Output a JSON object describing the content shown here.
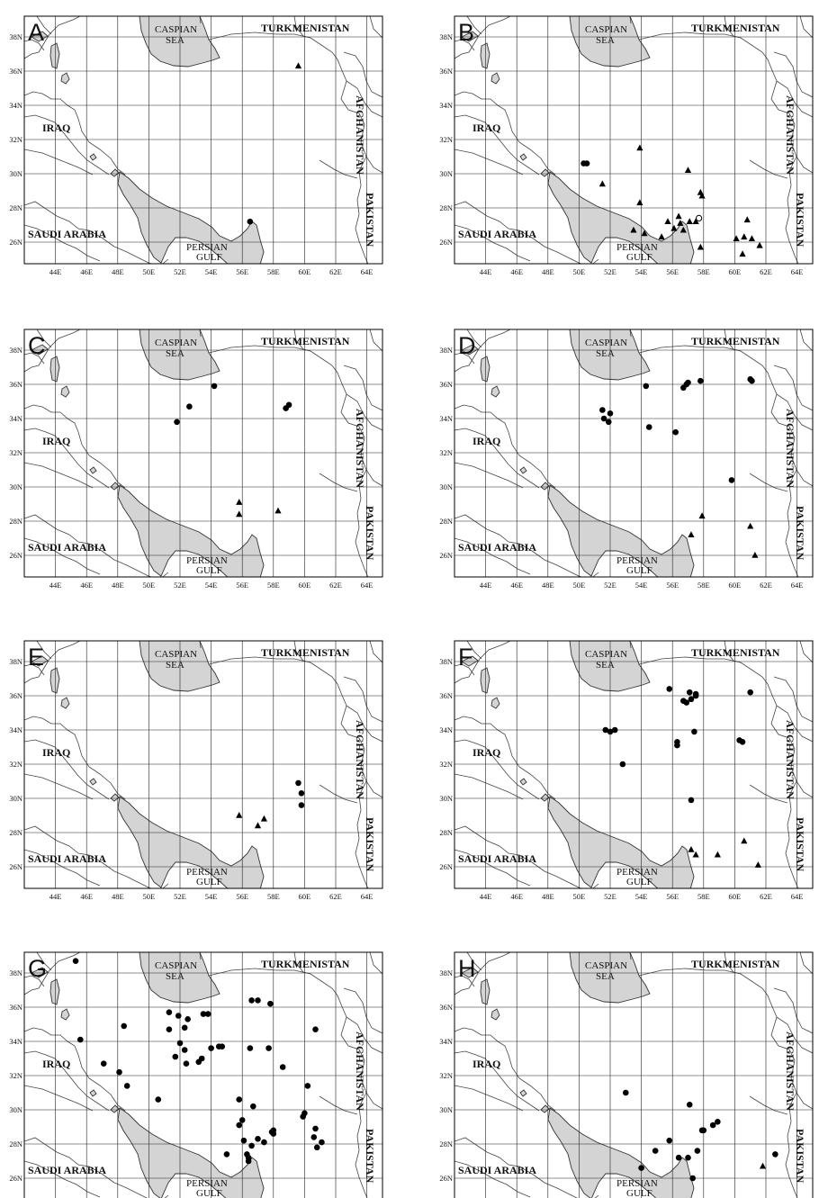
{
  "map": {
    "lon_range": [
      42,
      65
    ],
    "lat_range": [
      25,
      39.5
    ],
    "lon_ticks": [
      "44E",
      "46E",
      "48E",
      "50E",
      "52E",
      "54E",
      "56E",
      "58E",
      "60E",
      "62E",
      "64E"
    ],
    "lat_ticks": [
      "26N",
      "28N",
      "30N",
      "32N",
      "34N",
      "36N",
      "38N"
    ],
    "labels": {
      "turkmenistan": "TURKMENISTAN",
      "iraq": "IRAQ",
      "afghanistan": "AFGHANISTAN",
      "saudi_arabia": "SAUDI ARABIA",
      "pakistan": "PAKISTAN",
      "caspian_1": "CASPIAN",
      "caspian_2": "SEA",
      "gulf_1": "PERSIAN",
      "gulf_2": "GULF"
    },
    "colors": {
      "water": "#d4d4d4",
      "marker": "#000000"
    }
  },
  "panels": [
    {
      "letter": "A",
      "circles": [
        [
          56.5,
          27.2
        ]
      ],
      "triangles": [
        [
          59.6,
          36.3
        ]
      ],
      "open_circles": []
    },
    {
      "letter": "B",
      "circles": [
        [
          50.3,
          30.6
        ],
        [
          50.5,
          30.6
        ]
      ],
      "triangles": [
        [
          51.5,
          29.4
        ],
        [
          53.9,
          31.5
        ],
        [
          53.9,
          28.3
        ],
        [
          53.5,
          26.7
        ],
        [
          54.2,
          26.5
        ],
        [
          55.3,
          26.3
        ],
        [
          55.7,
          27.2
        ],
        [
          56.1,
          26.8
        ],
        [
          56.4,
          27.5
        ],
        [
          56.5,
          27.1
        ],
        [
          56.7,
          26.7
        ],
        [
          57.0,
          30.2
        ],
        [
          57.1,
          27.2
        ],
        [
          57.5,
          27.2
        ],
        [
          57.8,
          28.9
        ],
        [
          57.9,
          28.7
        ],
        [
          57.8,
          25.7
        ],
        [
          60.1,
          26.2
        ],
        [
          60.5,
          25.3
        ],
        [
          60.6,
          26.3
        ],
        [
          60.8,
          27.3
        ],
        [
          61.1,
          26.2
        ],
        [
          61.6,
          25.8
        ]
      ],
      "open_circles": [
        [
          57.7,
          27.4
        ]
      ]
    },
    {
      "letter": "C",
      "circles": [
        [
          51.8,
          33.8
        ],
        [
          52.6,
          34.7
        ],
        [
          54.2,
          35.9
        ],
        [
          58.8,
          34.6
        ],
        [
          59.0,
          34.8
        ]
      ],
      "triangles": [
        [
          55.8,
          29.1
        ],
        [
          55.8,
          28.4
        ],
        [
          58.3,
          28.6
        ]
      ],
      "open_circles": []
    },
    {
      "letter": "D",
      "circles": [
        [
          51.5,
          34.5
        ],
        [
          51.6,
          34.0
        ],
        [
          51.9,
          33.8
        ],
        [
          52.0,
          34.3
        ],
        [
          54.3,
          35.9
        ],
        [
          54.5,
          33.5
        ],
        [
          56.2,
          33.2
        ],
        [
          56.7,
          35.8
        ],
        [
          56.9,
          36.0
        ],
        [
          57.0,
          36.1
        ],
        [
          57.8,
          36.2
        ],
        [
          59.8,
          30.4
        ],
        [
          61.0,
          36.3
        ],
        [
          61.1,
          36.2
        ]
      ],
      "triangles": [
        [
          57.2,
          27.2
        ],
        [
          57.9,
          28.3
        ],
        [
          61.0,
          27.7
        ],
        [
          61.3,
          26.0
        ]
      ],
      "open_circles": []
    },
    {
      "letter": "E",
      "circles": [
        [
          59.6,
          30.9
        ],
        [
          59.8,
          30.3
        ],
        [
          59.8,
          29.6
        ]
      ],
      "triangles": [
        [
          55.8,
          29.0
        ],
        [
          57.0,
          28.4
        ],
        [
          57.4,
          28.8
        ]
      ],
      "open_circles": []
    },
    {
      "letter": "F",
      "circles": [
        [
          51.7,
          34.0
        ],
        [
          52.0,
          33.9
        ],
        [
          52.3,
          34.0
        ],
        [
          52.8,
          32.0
        ],
        [
          55.8,
          36.4
        ],
        [
          56.3,
          33.3
        ],
        [
          56.3,
          33.1
        ],
        [
          56.7,
          35.7
        ],
        [
          56.9,
          35.6
        ],
        [
          57.1,
          36.2
        ],
        [
          57.2,
          35.8
        ],
        [
          57.5,
          36.0
        ],
        [
          57.5,
          36.1
        ],
        [
          57.4,
          33.9
        ],
        [
          57.2,
          29.9
        ],
        [
          60.3,
          33.4
        ],
        [
          60.5,
          33.3
        ],
        [
          61.0,
          36.2
        ]
      ],
      "triangles": [
        [
          57.2,
          27.0
        ],
        [
          57.5,
          26.7
        ],
        [
          58.9,
          26.7
        ],
        [
          60.6,
          27.5
        ],
        [
          61.5,
          26.1
        ]
      ],
      "open_circles": []
    },
    {
      "letter": "G",
      "circles": [
        [
          45.3,
          38.7
        ],
        [
          45.6,
          34.1
        ],
        [
          47.1,
          32.7
        ],
        [
          48.1,
          32.2
        ],
        [
          48.4,
          34.9
        ],
        [
          48.6,
          31.4
        ],
        [
          50.6,
          30.6
        ],
        [
          51.3,
          35.7
        ],
        [
          51.3,
          34.7
        ],
        [
          51.7,
          33.1
        ],
        [
          51.9,
          35.5
        ],
        [
          52.0,
          33.9
        ],
        [
          52.3,
          33.5
        ],
        [
          52.3,
          34.8
        ],
        [
          52.4,
          32.7
        ],
        [
          52.5,
          35.3
        ],
        [
          53.2,
          32.8
        ],
        [
          53.4,
          33.0
        ],
        [
          53.5,
          35.6
        ],
        [
          53.8,
          35.6
        ],
        [
          54.0,
          33.6
        ],
        [
          54.5,
          33.7
        ],
        [
          54.7,
          33.7
        ],
        [
          55.0,
          27.4
        ],
        [
          55.8,
          30.6
        ],
        [
          55.8,
          29.1
        ],
        [
          56.0,
          29.4
        ],
        [
          56.1,
          28.2
        ],
        [
          56.3,
          27.4
        ],
        [
          56.4,
          27.2
        ],
        [
          56.4,
          27.0
        ],
        [
          56.6,
          27.9
        ],
        [
          56.7,
          30.2
        ],
        [
          56.5,
          33.6
        ],
        [
          56.6,
          36.4
        ],
        [
          57.0,
          36.4
        ],
        [
          57.0,
          28.3
        ],
        [
          57.4,
          28.1
        ],
        [
          57.7,
          33.6
        ],
        [
          57.8,
          36.2
        ],
        [
          57.9,
          28.7
        ],
        [
          58.0,
          28.8
        ],
        [
          58.0,
          28.6
        ],
        [
          58.6,
          32.5
        ],
        [
          59.9,
          29.6
        ],
        [
          60.0,
          29.8
        ],
        [
          60.2,
          31.4
        ],
        [
          60.6,
          28.4
        ],
        [
          60.7,
          34.7
        ],
        [
          60.7,
          28.9
        ],
        [
          60.8,
          27.8
        ],
        [
          61.1,
          28.1
        ]
      ],
      "triangles": [],
      "open_circles": []
    },
    {
      "letter": "H",
      "circles": [
        [
          53.0,
          31.0
        ],
        [
          54.0,
          26.6
        ],
        [
          54.9,
          27.6
        ],
        [
          55.8,
          28.2
        ],
        [
          56.4,
          27.2
        ],
        [
          57.0,
          27.2
        ],
        [
          57.1,
          30.3
        ],
        [
          57.3,
          26.0
        ],
        [
          57.6,
          27.6
        ],
        [
          57.9,
          28.8
        ],
        [
          58.0,
          28.8
        ],
        [
          58.6,
          29.1
        ],
        [
          58.9,
          29.3
        ],
        [
          62.6,
          27.4
        ]
      ],
      "triangles": [
        [
          61.8,
          26.7
        ]
      ],
      "open_circles": []
    }
  ]
}
